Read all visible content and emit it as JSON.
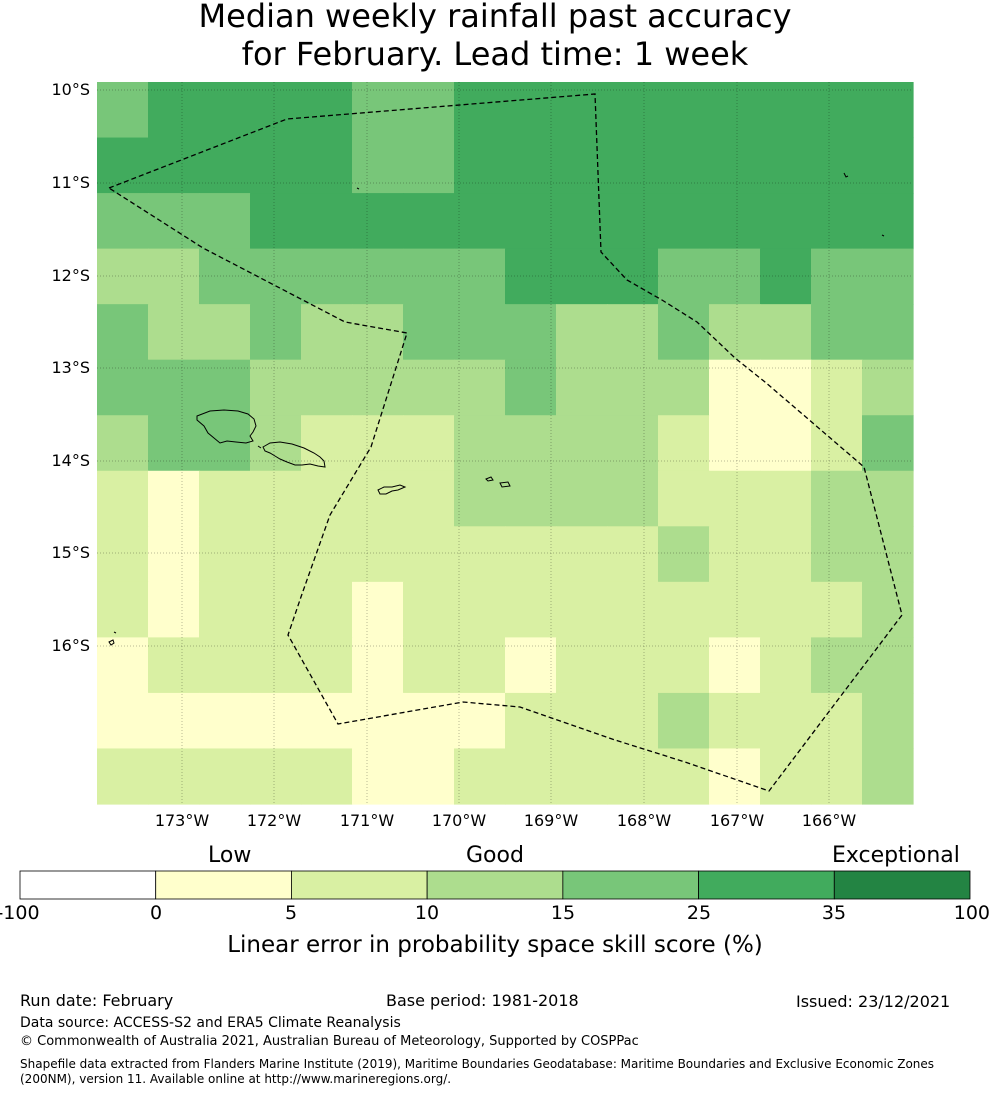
{
  "title": {
    "line1": "Median weekly rainfall past accuracy",
    "line2": "for February. Lead time: 1 week"
  },
  "map": {
    "lat_labels": [
      "10°S",
      "11°S",
      "12°S",
      "13°S",
      "14°S",
      "15°S",
      "16°S"
    ],
    "lon_labels": [
      "173°W",
      "172°W",
      "171°W",
      "170°W",
      "169°W",
      "168°W",
      "167°W",
      "166°W"
    ],
    "category_colors": [
      "#ffffff",
      "#ffffcc",
      "#d9f0a3",
      "#addd8e",
      "#78c679",
      "#41ab5d",
      "#238443"
    ],
    "grid": [
      [
        4,
        5,
        5,
        5,
        5,
        4,
        4,
        5,
        5,
        5,
        5,
        5,
        5,
        5,
        5,
        5
      ],
      [
        5,
        5,
        5,
        5,
        5,
        4,
        4,
        5,
        5,
        5,
        5,
        5,
        5,
        5,
        5,
        5
      ],
      [
        4,
        4,
        4,
        5,
        5,
        5,
        5,
        5,
        5,
        5,
        5,
        5,
        5,
        5,
        5,
        5
      ],
      [
        3,
        3,
        4,
        4,
        4,
        4,
        4,
        4,
        5,
        5,
        5,
        4,
        4,
        5,
        4,
        4
      ],
      [
        4,
        3,
        3,
        4,
        3,
        3,
        4,
        4,
        4,
        3,
        3,
        4,
        3,
        3,
        4,
        4
      ],
      [
        4,
        4,
        4,
        3,
        3,
        3,
        3,
        3,
        4,
        3,
        3,
        3,
        1,
        1,
        2,
        3
      ],
      [
        3,
        4,
        4,
        3,
        2,
        2,
        2,
        3,
        3,
        3,
        3,
        2,
        1,
        1,
        2,
        4
      ],
      [
        2,
        1,
        2,
        2,
        2,
        2,
        2,
        3,
        3,
        3,
        3,
        2,
        2,
        2,
        3,
        3
      ],
      [
        2,
        1,
        2,
        2,
        2,
        2,
        2,
        2,
        2,
        2,
        2,
        3,
        2,
        2,
        3,
        3
      ],
      [
        2,
        1,
        2,
        2,
        2,
        1,
        2,
        2,
        2,
        2,
        2,
        2,
        2,
        2,
        2,
        3
      ],
      [
        1,
        2,
        2,
        2,
        2,
        1,
        2,
        2,
        1,
        2,
        2,
        2,
        1,
        2,
        3,
        3
      ],
      [
        1,
        1,
        1,
        1,
        1,
        1,
        1,
        1,
        2,
        2,
        2,
        3,
        2,
        2,
        2,
        3
      ],
      [
        2,
        2,
        2,
        2,
        2,
        1,
        1,
        2,
        2,
        2,
        2,
        2,
        1,
        2,
        2,
        3
      ]
    ]
  },
  "colorbar": {
    "colors": [
      "#ffffff",
      "#ffffcc",
      "#d9f0a3",
      "#addd8e",
      "#78c679",
      "#41ab5d",
      "#238443"
    ],
    "ticks": [
      "-100",
      "0",
      "5",
      "10",
      "15",
      "25",
      "35",
      "100"
    ],
    "categories": [
      "Low",
      "Good",
      "Exceptional"
    ],
    "label": "Linear error in probability space skill score (%)"
  },
  "footer": {
    "run_date": "Run date: February",
    "base_period": "Base period: 1981-2018",
    "issued": "Issued: 23/12/2021",
    "data_source": "Data source: ACCESS-S2 and ERA5 Climate Reanalysis",
    "copyright": "© Commonwealth of Australia 2021, Australian Bureau of Meteorology, Supported by COSPPac",
    "shapefile_line1": "Shapefile data extracted from Flanders Marine Institute (2019), Maritime Boundaries Geodatabase: Maritime Boundaries and Exclusive Economic Zones",
    "shapefile_line2": "(200NM), version 11. Available online at http://www.marineregions.org/."
  }
}
